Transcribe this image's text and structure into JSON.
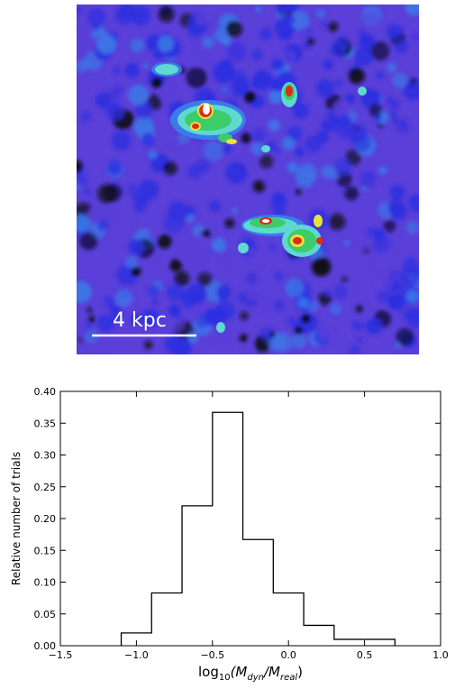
{
  "map": {
    "scalebar_label": "4 kpc",
    "colors": {
      "background": "#5a3fd8",
      "low": "#2b2fe0",
      "mid": "#3a7be8",
      "cyan": "#5fd8d0",
      "green": "#3ccc6a",
      "yellow": "#e8e23a",
      "red": "#e02a1a",
      "white": "#ffffff",
      "dark": "#0a0a12"
    }
  },
  "chart_data": {
    "type": "histogram",
    "bin_edges": [
      -1.1,
      -0.9,
      -0.7,
      -0.5,
      -0.3,
      -0.1,
      0.1,
      0.3,
      0.5,
      0.7
    ],
    "values": [
      0.02,
      0.083,
      0.22,
      0.367,
      0.167,
      0.083,
      0.032,
      0.01,
      0.01
    ],
    "xlim": [
      -1.5,
      1.0
    ],
    "ylim": [
      0.0,
      0.4
    ],
    "xticks": [
      "−1.5",
      "−1.0",
      "−0.5",
      "0.0",
      "0.5",
      "1.0"
    ],
    "yticks": [
      "0.00",
      "0.05",
      "0.10",
      "0.15",
      "0.20",
      "0.25",
      "0.30",
      "0.35",
      "0.40"
    ],
    "xlabel_prefix": "log",
    "xlabel_sub": "10",
    "xlabel_rest": "(M",
    "xlabel_sub2": "dyn",
    "xlabel_mid": "/M",
    "xlabel_sub3": "real",
    "xlabel_end": ")",
    "ylabel": "Relative number of trials",
    "line_color": "#000000"
  }
}
